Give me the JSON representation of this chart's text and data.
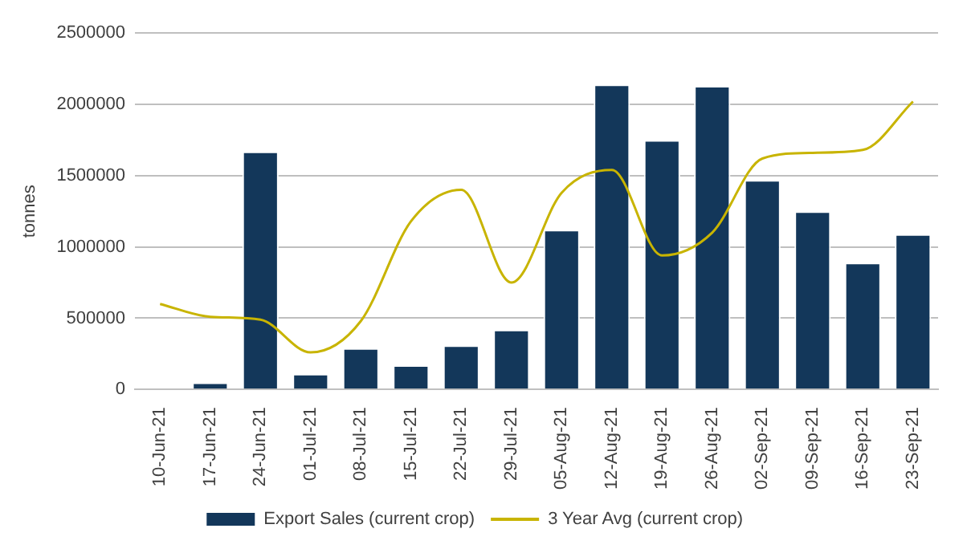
{
  "chart_data": {
    "type": "bar",
    "ylabel": "tonnes",
    "categories": [
      "10-Jun-21",
      "17-Jun-21",
      "24-Jun-21",
      "01-Jul-21",
      "08-Jul-21",
      "15-Jul-21",
      "22-Jul-21",
      "29-Jul-21",
      "05-Aug-21",
      "12-Aug-21",
      "19-Aug-21",
      "26-Aug-21",
      "02-Sep-21",
      "09-Sep-21",
      "16-Sep-21",
      "23-Sep-21"
    ],
    "series": [
      {
        "name": "Export Sales (current crop)",
        "color": "#13375a",
        "values": [
          0,
          50000,
          1670000,
          110000,
          290000,
          170000,
          310000,
          420000,
          1120000,
          2140000,
          1750000,
          2130000,
          1470000,
          1250000,
          890000,
          1090000
        ]
      },
      {
        "name": "3 Year Avg (current crop)",
        "type": "line",
        "color": "#c8b400",
        "values": [
          600000,
          510000,
          490000,
          260000,
          480000,
          1180000,
          1400000,
          750000,
          1380000,
          1540000,
          940000,
          1100000,
          1620000,
          1660000,
          1680000,
          2020000
        ]
      }
    ],
    "ylim": [
      0,
      2500000
    ],
    "yticks": [
      0,
      500000,
      1000000,
      1500000,
      2000000,
      2500000
    ],
    "grid": "y",
    "legend": "bottom",
    "marker": "none"
  }
}
